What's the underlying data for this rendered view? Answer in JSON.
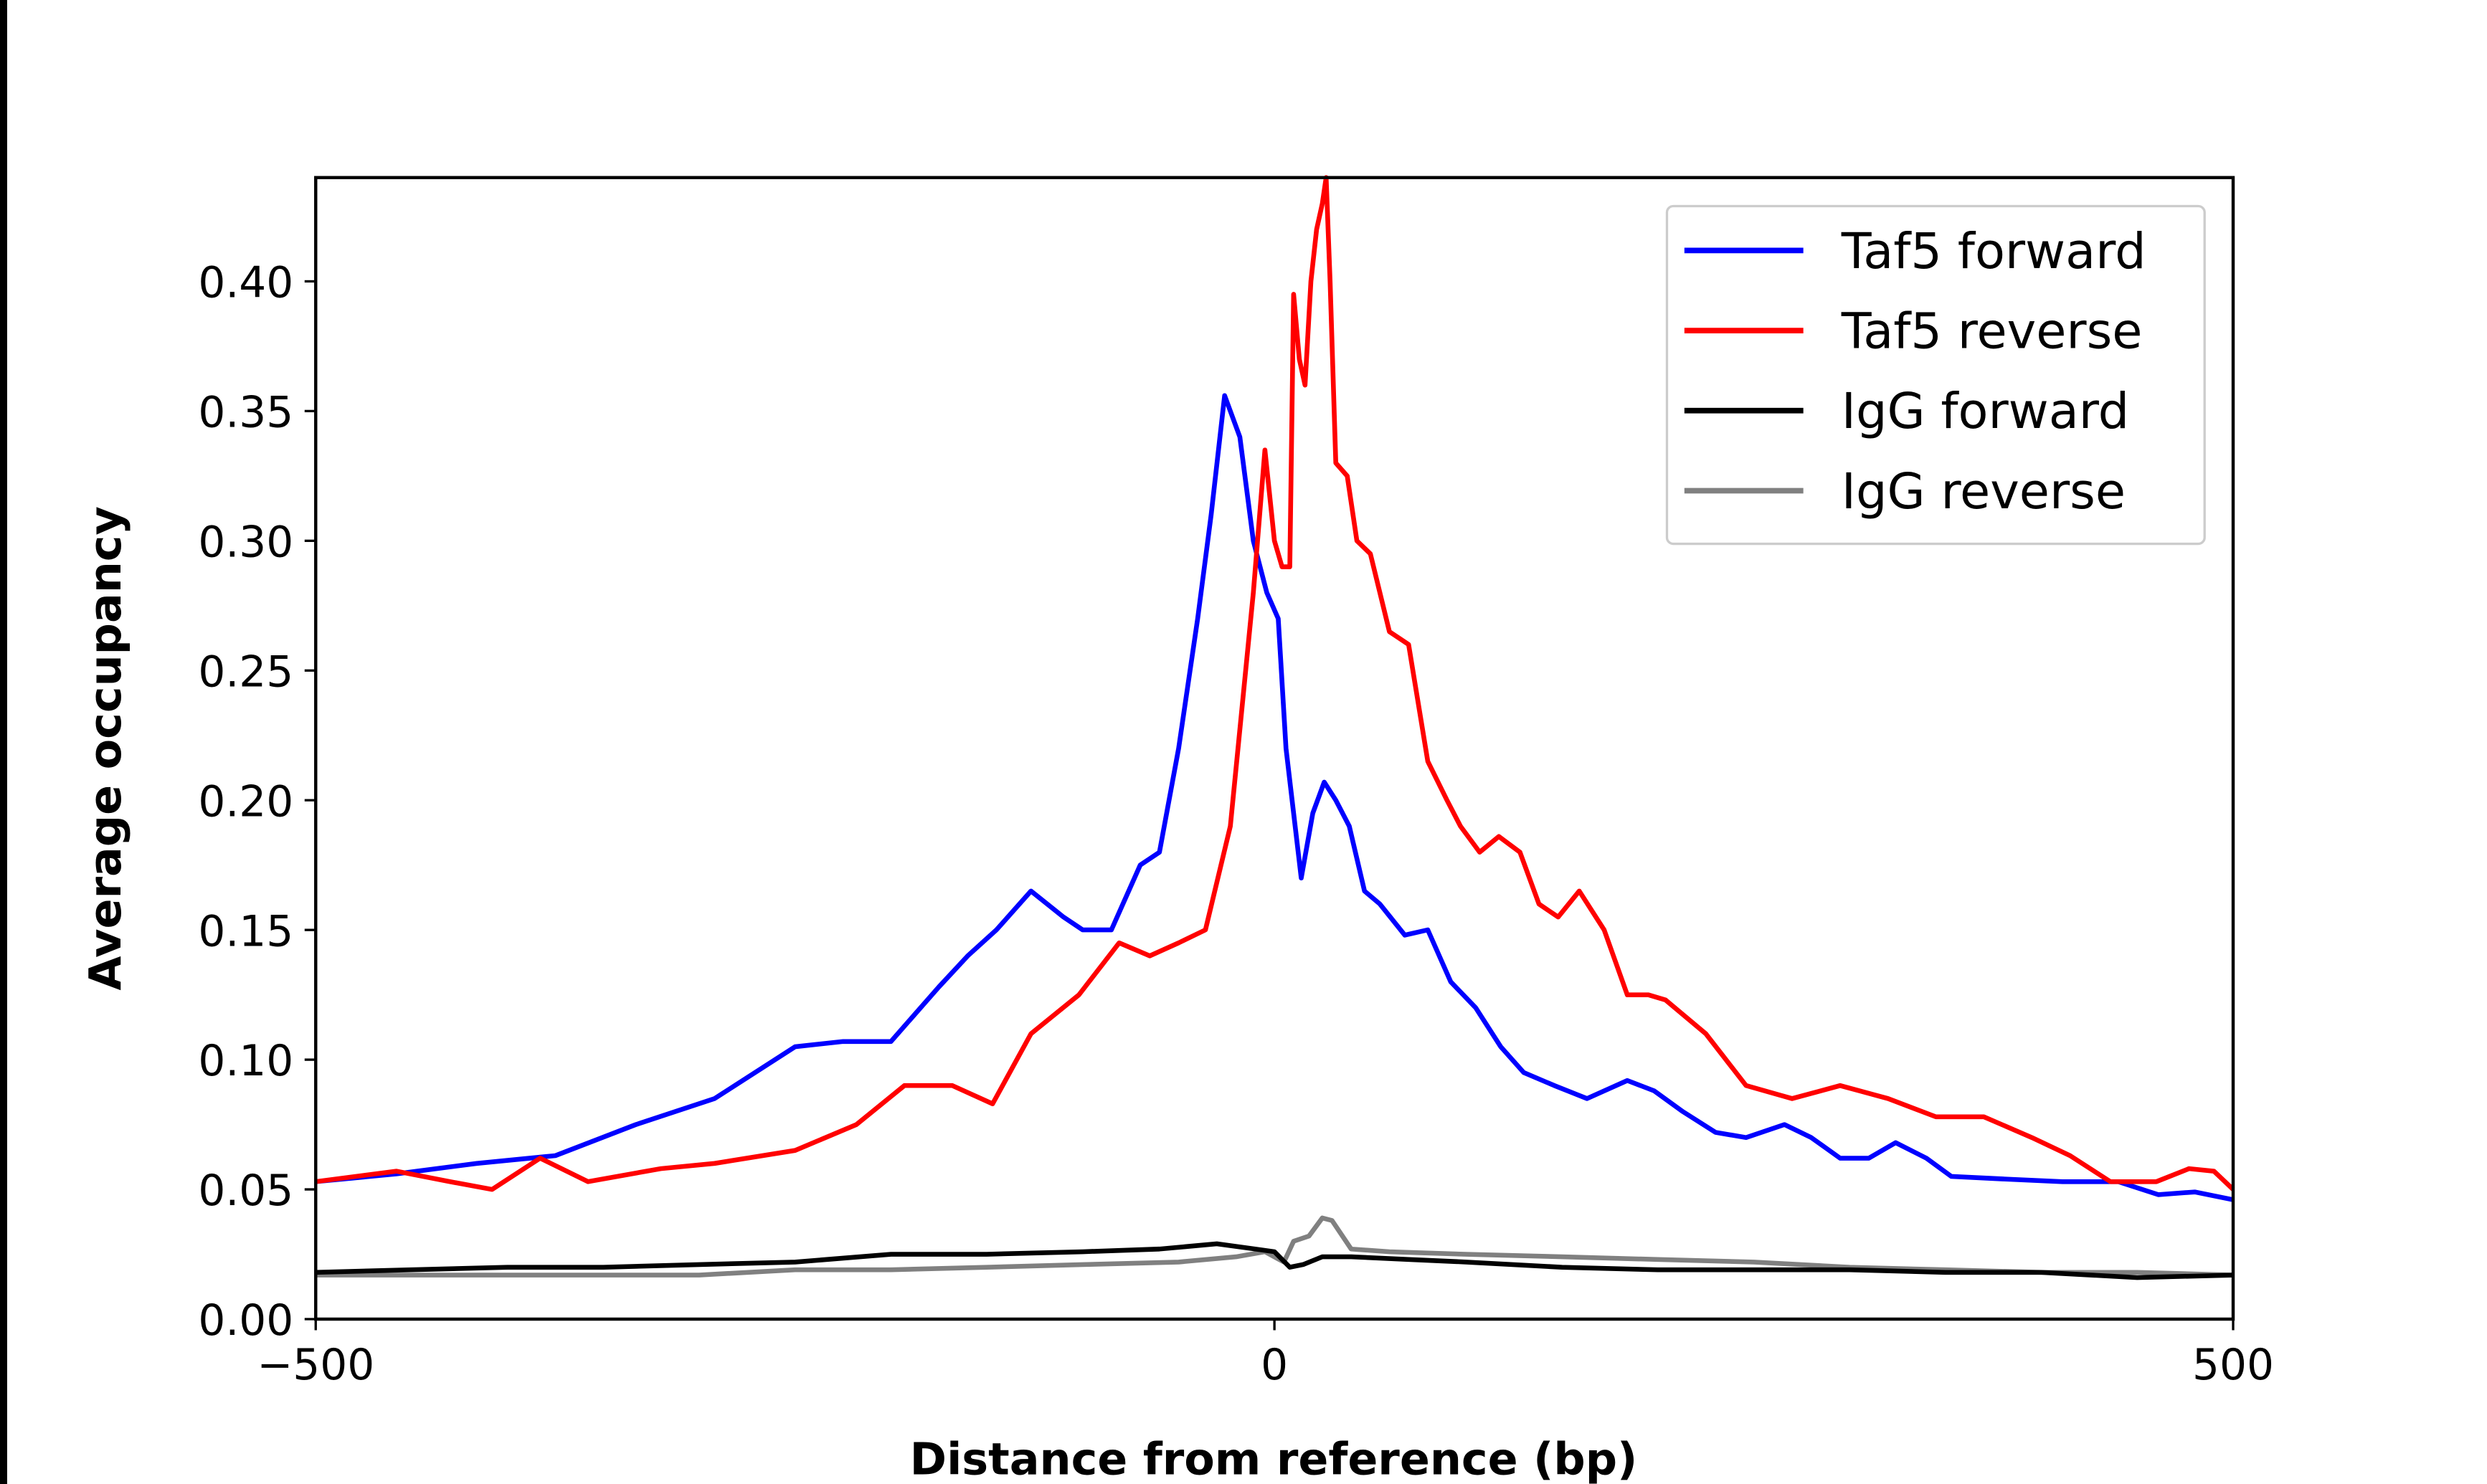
{
  "chart_data": {
    "type": "line",
    "title": "",
    "xlabel": "Distance from reference (bp)",
    "ylabel": "Average occupancy",
    "xlim": [
      -500,
      500
    ],
    "ylim": [
      0,
      0.44
    ],
    "xticks": [
      -500,
      0,
      500
    ],
    "xtick_labels": [
      "−500",
      "0",
      "500"
    ],
    "yticks": [
      0,
      0.05,
      0.1,
      0.15,
      0.2,
      0.25,
      0.3,
      0.35,
      0.4
    ],
    "ytick_labels": [
      "0.00",
      "0.05",
      "0.10",
      "0.15",
      "0.20",
      "0.25",
      "0.30",
      "0.35",
      "0.40"
    ],
    "grid": false,
    "legend_position": "top-right",
    "series": [
      {
        "name": "Taf5 forward",
        "color": "#0000ff",
        "x": [
          -500,
          -458,
          -416,
          -375,
          -333,
          -292,
          -250,
          -225,
          -200,
          -175,
          -160,
          -145,
          -127,
          -110,
          -100,
          -85,
          -70,
          -60,
          -50,
          -40,
          -33,
          -26,
          -18,
          -11,
          -4,
          2,
          6,
          14,
          20,
          26,
          32,
          39,
          47,
          55,
          68,
          80,
          92,
          105,
          118,
          130,
          146,
          163,
          184,
          198,
          213,
          230,
          246,
          266,
          280,
          295,
          310,
          324,
          340,
          353,
          380,
          411,
          440,
          461,
          480,
          500
        ],
        "y": [
          0.053,
          0.056,
          0.06,
          0.063,
          0.075,
          0.085,
          0.105,
          0.107,
          0.107,
          0.128,
          0.14,
          0.15,
          0.165,
          0.155,
          0.15,
          0.15,
          0.175,
          0.18,
          0.22,
          0.27,
          0.31,
          0.356,
          0.34,
          0.3,
          0.28,
          0.27,
          0.22,
          0.17,
          0.195,
          0.207,
          0.2,
          0.19,
          0.165,
          0.16,
          0.148,
          0.15,
          0.13,
          0.12,
          0.105,
          0.095,
          0.09,
          0.085,
          0.092,
          0.088,
          0.08,
          0.072,
          0.07,
          0.075,
          0.07,
          0.062,
          0.062,
          0.068,
          0.062,
          0.055,
          0.054,
          0.053,
          0.053,
          0.048,
          0.049,
          0.046
        ]
      },
      {
        "name": "Taf5 reverse",
        "color": "#ff0000",
        "x": [
          -500,
          -458,
          -430,
          -408,
          -383,
          -358,
          -320,
          -292,
          -250,
          -218,
          -193,
          -168,
          -147,
          -127,
          -102,
          -81,
          -65,
          -50,
          -36,
          -23,
          -11,
          -5,
          0,
          4,
          8,
          10,
          13,
          16,
          19,
          22,
          25,
          27,
          29,
          32,
          38,
          43,
          50,
          60,
          70,
          80,
          90,
          97,
          107,
          117,
          128,
          138,
          148,
          159,
          172,
          184,
          195,
          204,
          225,
          246,
          270,
          295,
          320,
          345,
          370,
          395,
          415,
          436,
          460,
          477,
          490,
          500
        ],
        "y": [
          0.053,
          0.057,
          0.053,
          0.05,
          0.062,
          0.053,
          0.058,
          0.06,
          0.065,
          0.075,
          0.09,
          0.09,
          0.083,
          0.11,
          0.125,
          0.145,
          0.14,
          0.145,
          0.15,
          0.19,
          0.28,
          0.335,
          0.3,
          0.29,
          0.29,
          0.395,
          0.37,
          0.36,
          0.4,
          0.42,
          0.43,
          0.44,
          0.4,
          0.33,
          0.325,
          0.3,
          0.295,
          0.265,
          0.26,
          0.215,
          0.2,
          0.19,
          0.18,
          0.186,
          0.18,
          0.16,
          0.155,
          0.165,
          0.15,
          0.125,
          0.125,
          0.123,
          0.11,
          0.09,
          0.085,
          0.09,
          0.085,
          0.078,
          0.078,
          0.07,
          0.063,
          0.053,
          0.053,
          0.058,
          0.057,
          0.05
        ]
      },
      {
        "name": "IgG forward",
        "color": "#000000",
        "x": [
          -500,
          -450,
          -400,
          -350,
          -300,
          -250,
          -200,
          -150,
          -100,
          -60,
          -30,
          -10,
          0,
          8,
          15,
          25,
          40,
          70,
          100,
          150,
          200,
          250,
          300,
          350,
          400,
          450,
          500
        ],
        "y": [
          0.018,
          0.019,
          0.02,
          0.02,
          0.021,
          0.022,
          0.025,
          0.025,
          0.026,
          0.027,
          0.029,
          0.027,
          0.026,
          0.02,
          0.021,
          0.024,
          0.024,
          0.023,
          0.022,
          0.02,
          0.019,
          0.019,
          0.019,
          0.018,
          0.018,
          0.016,
          0.017
        ]
      },
      {
        "name": "IgG reverse",
        "color": "#808080",
        "x": [
          -500,
          -450,
          -400,
          -350,
          -300,
          -250,
          -200,
          -150,
          -100,
          -50,
          -20,
          -5,
          5,
          10,
          18,
          25,
          30,
          40,
          60,
          100,
          150,
          200,
          250,
          300,
          350,
          400,
          450,
          500
        ],
        "y": [
          0.017,
          0.017,
          0.017,
          0.017,
          0.017,
          0.019,
          0.019,
          0.02,
          0.021,
          0.022,
          0.024,
          0.026,
          0.022,
          0.03,
          0.032,
          0.039,
          0.038,
          0.027,
          0.026,
          0.025,
          0.024,
          0.023,
          0.022,
          0.02,
          0.019,
          0.018,
          0.018,
          0.017
        ]
      }
    ]
  }
}
